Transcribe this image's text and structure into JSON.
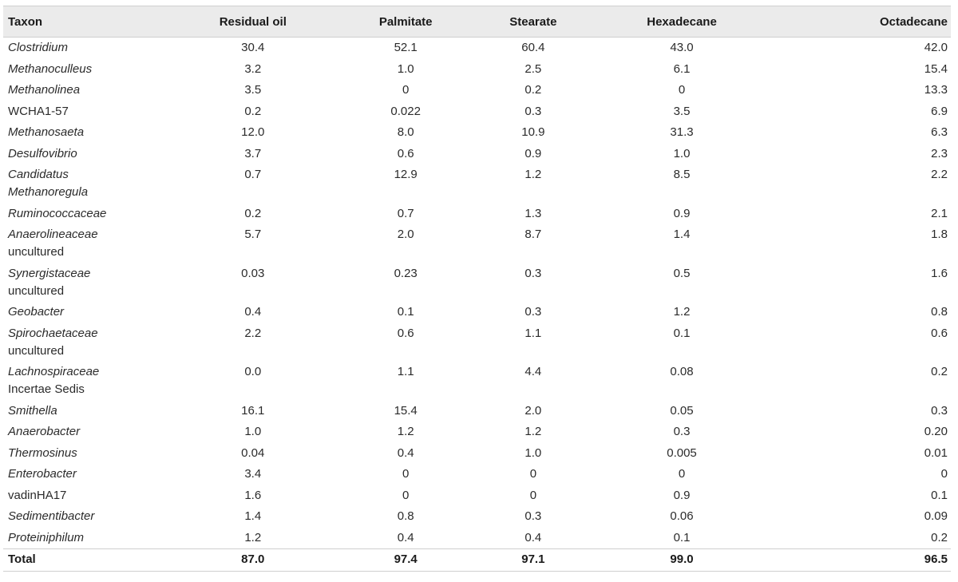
{
  "table": {
    "headers": [
      "Taxon",
      "Residual oil",
      "Palmitate",
      "Stearate",
      "Hexadecane",
      "Octadecane"
    ],
    "rows": [
      {
        "taxon": [
          "Clostridium"
        ],
        "italic": true,
        "values": [
          "30.4",
          "52.1",
          "60.4",
          "43.0",
          "42.0"
        ]
      },
      {
        "taxon": [
          "Methanoculleus"
        ],
        "italic": true,
        "values": [
          "3.2",
          "1.0",
          "2.5",
          "6.1",
          "15.4"
        ]
      },
      {
        "taxon": [
          "Methanolinea"
        ],
        "italic": true,
        "values": [
          "3.5",
          "0",
          "0.2",
          "0",
          "13.3"
        ]
      },
      {
        "taxon": [
          "WCHA1-57"
        ],
        "italic": false,
        "values": [
          "0.2",
          "0.022",
          "0.3",
          "3.5",
          "6.9"
        ]
      },
      {
        "taxon": [
          "Methanosaeta"
        ],
        "italic": true,
        "values": [
          "12.0",
          "8.0",
          "10.9",
          "31.3",
          "6.3"
        ]
      },
      {
        "taxon": [
          "Desulfovibrio"
        ],
        "italic": true,
        "values": [
          "3.7",
          "0.6",
          "0.9",
          "1.0",
          "2.3"
        ]
      },
      {
        "taxon": [
          "Candidatus",
          "Methanoregula"
        ],
        "italic": true,
        "values": [
          "0.7",
          "12.9",
          "1.2",
          "8.5",
          "2.2"
        ]
      },
      {
        "taxon": [
          "Ruminococcaceae"
        ],
        "italic": true,
        "values": [
          "0.2",
          "0.7",
          "1.3",
          "0.9",
          "2.1"
        ]
      },
      {
        "taxon": [
          "Anaerolineaceae",
          "uncultured"
        ],
        "italic": "first",
        "values": [
          "5.7",
          "2.0",
          "8.7",
          "1.4",
          "1.8"
        ]
      },
      {
        "taxon": [
          "Synergistaceae",
          "uncultured"
        ],
        "italic": "first",
        "values": [
          "0.03",
          "0.23",
          "0.3",
          "0.5",
          "1.6"
        ]
      },
      {
        "taxon": [
          "Geobacter"
        ],
        "italic": true,
        "values": [
          "0.4",
          "0.1",
          "0.3",
          "1.2",
          "0.8"
        ]
      },
      {
        "taxon": [
          "Spirochaetaceae",
          "uncultured"
        ],
        "italic": "first",
        "values": [
          "2.2",
          "0.6",
          "1.1",
          "0.1",
          "0.6"
        ]
      },
      {
        "taxon": [
          "Lachnospiraceae",
          "Incertae Sedis"
        ],
        "italic": "first",
        "values": [
          "0.0",
          "1.1",
          "4.4",
          "0.08",
          "0.2"
        ]
      },
      {
        "taxon": [
          "Smithella"
        ],
        "italic": true,
        "values": [
          "16.1",
          "15.4",
          "2.0",
          "0.05",
          "0.3"
        ]
      },
      {
        "taxon": [
          "Anaerobacter"
        ],
        "italic": true,
        "values": [
          "1.0",
          "1.2",
          "1.2",
          "0.3",
          "0.20"
        ]
      },
      {
        "taxon": [
          "Thermosinus"
        ],
        "italic": true,
        "values": [
          "0.04",
          "0.4",
          "1.0",
          "0.005",
          "0.01"
        ]
      },
      {
        "taxon": [
          "Enterobacter"
        ],
        "italic": true,
        "values": [
          "3.4",
          "0",
          "0",
          "0",
          "0"
        ]
      },
      {
        "taxon": [
          "vadinHA17"
        ],
        "italic": false,
        "values": [
          "1.6",
          "0",
          "0",
          "0.9",
          "0.1"
        ]
      },
      {
        "taxon": [
          "Sedimentibacter"
        ],
        "italic": true,
        "values": [
          "1.4",
          "0.8",
          "0.3",
          "0.06",
          "0.09"
        ]
      },
      {
        "taxon": [
          "Proteiniphilum"
        ],
        "italic": true,
        "values": [
          "1.2",
          "0.4",
          "0.4",
          "0.1",
          "0.2"
        ]
      }
    ],
    "total": {
      "label": "Total",
      "values": [
        "87.0",
        "97.4",
        "97.1",
        "99.0",
        "96.5"
      ]
    }
  }
}
